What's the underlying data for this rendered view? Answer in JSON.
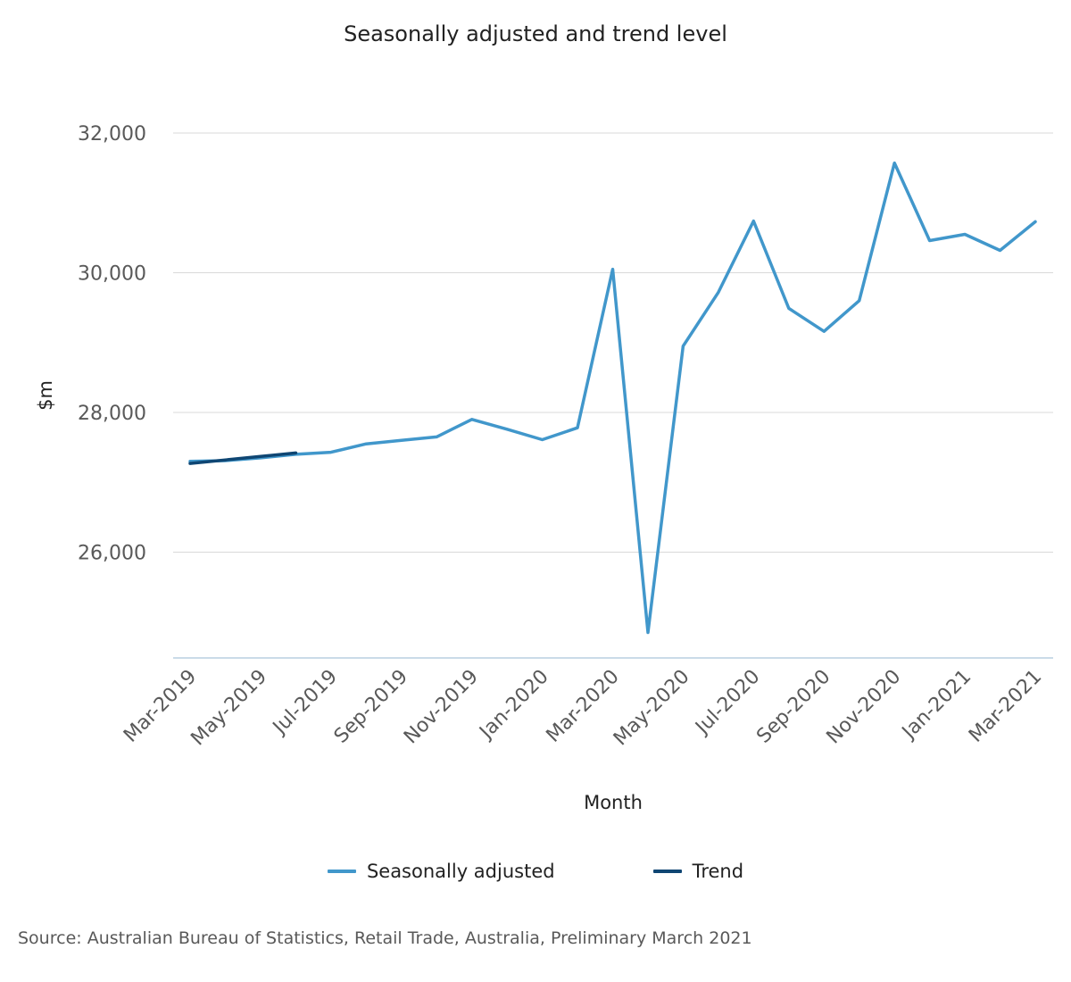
{
  "chart_data": {
    "type": "line",
    "title": "Seasonally adjusted and trend level",
    "xlabel": "Month",
    "ylabel": "$m",
    "ylim": [
      24700,
      32500
    ],
    "yticks": [
      26000,
      28000,
      30000,
      32000
    ],
    "ytick_labels": [
      "26,000",
      "28,000",
      "30,000",
      "32,000"
    ],
    "grid": true,
    "legend_position": "bottom",
    "x": [
      "Mar-2019",
      "Apr-2019",
      "May-2019",
      "Jun-2019",
      "Jul-2019",
      "Aug-2019",
      "Sep-2019",
      "Oct-2019",
      "Nov-2019",
      "Dec-2019",
      "Jan-2020",
      "Feb-2020",
      "Mar-2020",
      "Apr-2020",
      "May-2020",
      "Jun-2020",
      "Jul-2020",
      "Aug-2020",
      "Sep-2020",
      "Oct-2020",
      "Nov-2020",
      "Dec-2020",
      "Jan-2021",
      "Feb-2021",
      "Mar-2021"
    ],
    "x_tick_labels": [
      "Mar-2019",
      "May-2019",
      "Jul-2019",
      "Sep-2019",
      "Nov-2019",
      "Jan-2020",
      "Mar-2020",
      "May-2020",
      "Jul-2020",
      "Sep-2020",
      "Nov-2020",
      "Jan-2021",
      "Mar-2021"
    ],
    "series": [
      {
        "name": "Seasonally adjusted",
        "color": "#4197cb",
        "values": [
          27300,
          27310,
          27350,
          27400,
          27430,
          27550,
          27600,
          27650,
          27900,
          27760,
          27610,
          27780,
          30050,
          24850,
          28950,
          29720,
          30740,
          29490,
          29160,
          29600,
          31570,
          30460,
          30550,
          30320,
          30730
        ]
      },
      {
        "name": "Trend",
        "color": "#0f4673",
        "values": [
          27270,
          27320,
          27370,
          27420,
          null,
          null,
          null,
          null,
          null,
          null,
          null,
          null,
          null,
          null,
          null,
          null,
          null,
          null,
          null,
          null,
          null,
          null,
          null,
          null,
          null
        ]
      }
    ]
  },
  "source": "Source: Australian Bureau of Statistics, Retail Trade, Australia, Preliminary March 2021"
}
